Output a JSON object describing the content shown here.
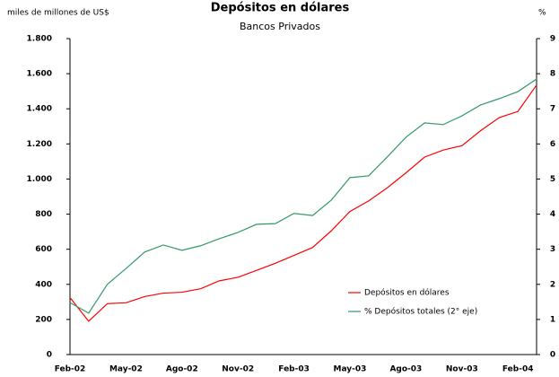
{
  "chart_data": {
    "type": "line",
    "title": "Depósitos en dólares",
    "subtitle": "Bancos Privados",
    "y_label": "miles de millones de US$",
    "y2_label": "%",
    "categories": [
      "Feb-02",
      null,
      null,
      "May-02",
      null,
      null,
      "Ago-02",
      null,
      null,
      "Nov-02",
      null,
      null,
      "Feb-03",
      null,
      null,
      "May-03",
      null,
      null,
      "Ago-03",
      null,
      null,
      "Nov-03",
      null,
      null,
      "Feb-04",
      null
    ],
    "series": [
      {
        "name": "Depósitos en dólares",
        "color": "#ff0000",
        "values": [
          325,
          190,
          290,
          295,
          330,
          350,
          355,
          375,
          420,
          440,
          480,
          520,
          565,
          610,
          705,
          815,
          875,
          950,
          1035,
          1125,
          1165,
          1190,
          1275,
          1350,
          1385,
          1535
        ]
      },
      {
        "name": "% Depósitos totales (2° eje)",
        "color": "#339966",
        "axis": "y2",
        "values": [
          1.48,
          1.18,
          2.0,
          2.45,
          2.92,
          3.12,
          2.97,
          3.1,
          3.3,
          3.48,
          3.71,
          3.73,
          4.02,
          3.96,
          4.4,
          5.04,
          5.09,
          5.63,
          6.19,
          6.6,
          6.55,
          6.8,
          7.11,
          7.29,
          7.49,
          7.85
        ]
      }
    ],
    "ylim": [
      0,
      1800
    ],
    "yticks": [
      0,
      200,
      400,
      600,
      800,
      {
        "value": 1000,
        "label": "1.000"
      },
      {
        "value": 1200,
        "label": "1.200"
      },
      {
        "value": 1400,
        "label": "1.400"
      },
      {
        "value": 1600,
        "label": "1.600"
      },
      {
        "value": 1800,
        "label": "1.800"
      }
    ],
    "y2lim": [
      0,
      9
    ],
    "y2ticks": [
      0,
      1,
      2,
      3,
      4,
      5,
      6,
      7,
      8,
      9
    ],
    "grid": false
  }
}
